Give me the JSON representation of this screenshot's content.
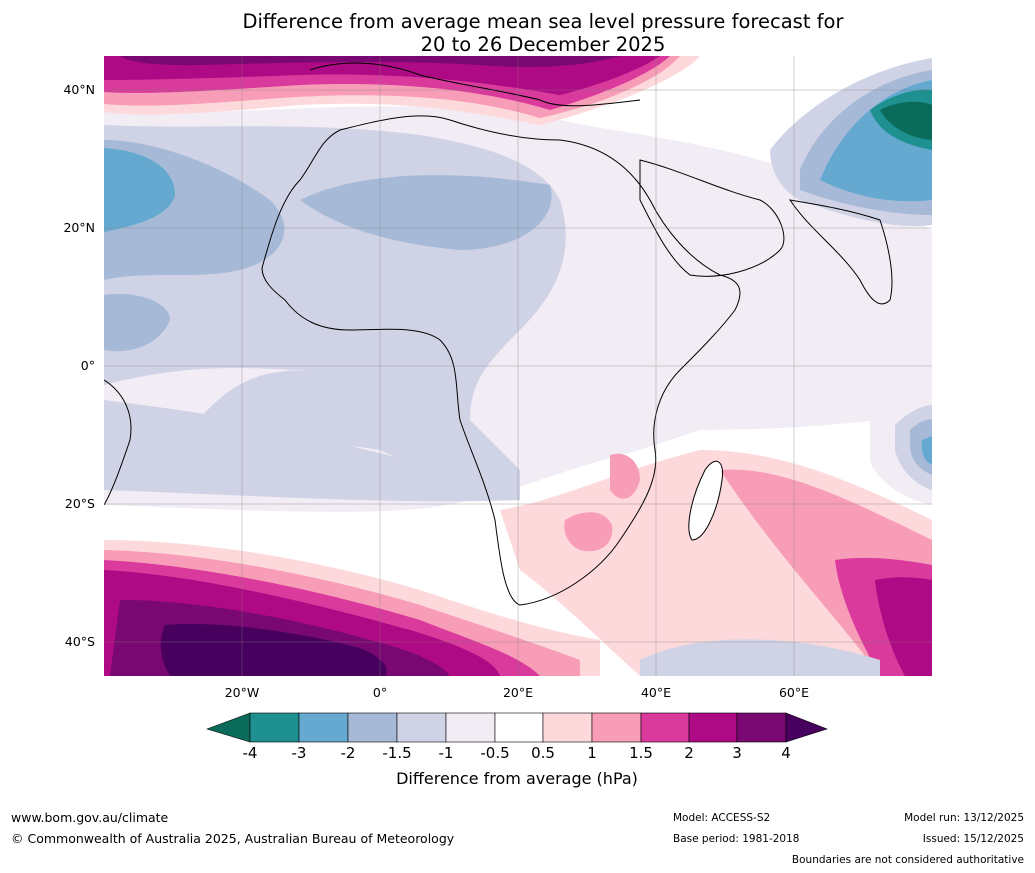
{
  "title_line1": "Difference from average mean sea level pressure forecast for",
  "title_line2": "20 to 26 December 2025",
  "lat_labels": [
    "40°N",
    "20°N",
    "0°",
    "20°S",
    "40°S"
  ],
  "lon_labels": [
    "20°W",
    "0°",
    "20°E",
    "40°E",
    "60°E"
  ],
  "colorbar": {
    "ticks": [
      "-4",
      "-3",
      "-2",
      "-1.5",
      "-1",
      "-0.5",
      "0.5",
      "1",
      "1.5",
      "2",
      "3",
      "4"
    ],
    "title": "Difference from average (hPa)",
    "colors": {
      "below_min": "#0b6b5a",
      "c1": "#1f9090",
      "c2": "#66a9d0",
      "c3": "#a6bad8",
      "c4": "#d0d3e6",
      "c5": "#f2ecf5",
      "c6": "#ffffff",
      "c7": "#fdd9dc",
      "c8": "#f89db7",
      "c9": "#d93a9c",
      "c10": "#ae0a85",
      "c11": "#790873",
      "above_max": "#48005e"
    }
  },
  "footer": {
    "website": "www.bom.gov.au/climate",
    "copyright": "© Commonwealth of Australia 2025, Australian Bureau of Meteorology",
    "model": "Model: ACCESS-S2",
    "base_period": "Base period: 1981-2018",
    "model_run": "Model run: 13/12/2025",
    "issued": "Issued: 15/12/2025",
    "boundaries": "Boundaries are not considered authoritative"
  }
}
